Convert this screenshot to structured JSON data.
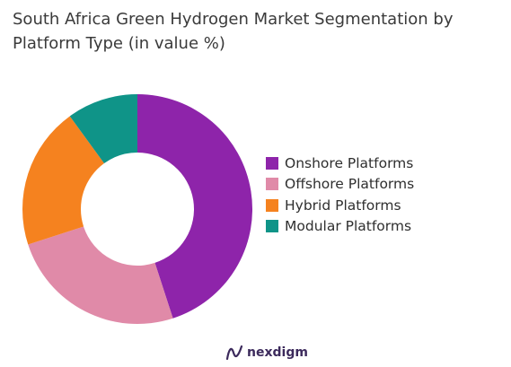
{
  "header": {
    "title_line1": "South Africa Green Hydrogen Market Segmentation by",
    "title_line2": "Platform Type (in value %)"
  },
  "chart_data": {
    "type": "pie",
    "donut": true,
    "categories": [
      "Onshore Platforms",
      "Offshore Platforms",
      "Hybrid Platforms",
      "Modular Platforms"
    ],
    "values": [
      45,
      25,
      20,
      10
    ],
    "colors": [
      "#8e24aa",
      "#e08aa8",
      "#f5821f",
      "#0f9488"
    ],
    "legend_position": "right"
  },
  "brand": {
    "name": "nexdigm",
    "icon": "nexdigm-logo-icon",
    "color": "#3c2a5c"
  }
}
